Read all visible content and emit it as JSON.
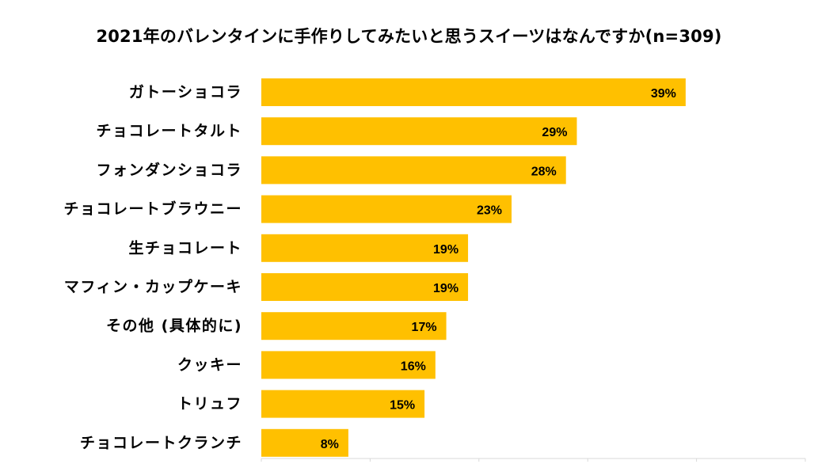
{
  "chart_data": {
    "type": "bar",
    "orientation": "horizontal",
    "title": "2021年のバレンタインに手作りしてみたいと思うスイーツはなんですか(n=309)",
    "categories": [
      "ガトーショコラ",
      "チョコレートタルト",
      "フォンダンショコラ",
      "チョコレートブラウニー",
      "生チョコレート",
      "マフィン・カップケーキ",
      "その他 (具体的に)",
      "クッキー",
      "トリュフ",
      "チョコレートクランチ"
    ],
    "values": [
      39,
      29,
      28,
      23,
      19,
      19,
      17,
      16,
      15,
      8
    ],
    "data_labels": [
      "39%",
      "29%",
      "28%",
      "23%",
      "19%",
      "19%",
      "17%",
      "16%",
      "15%",
      "8%"
    ],
    "unit": "%",
    "xlim": [
      0,
      50
    ],
    "grid": false,
    "legend": "none",
    "bar_color": "#FFC000",
    "label_color": "#000000",
    "axis_color": "#D9D9D9"
  }
}
